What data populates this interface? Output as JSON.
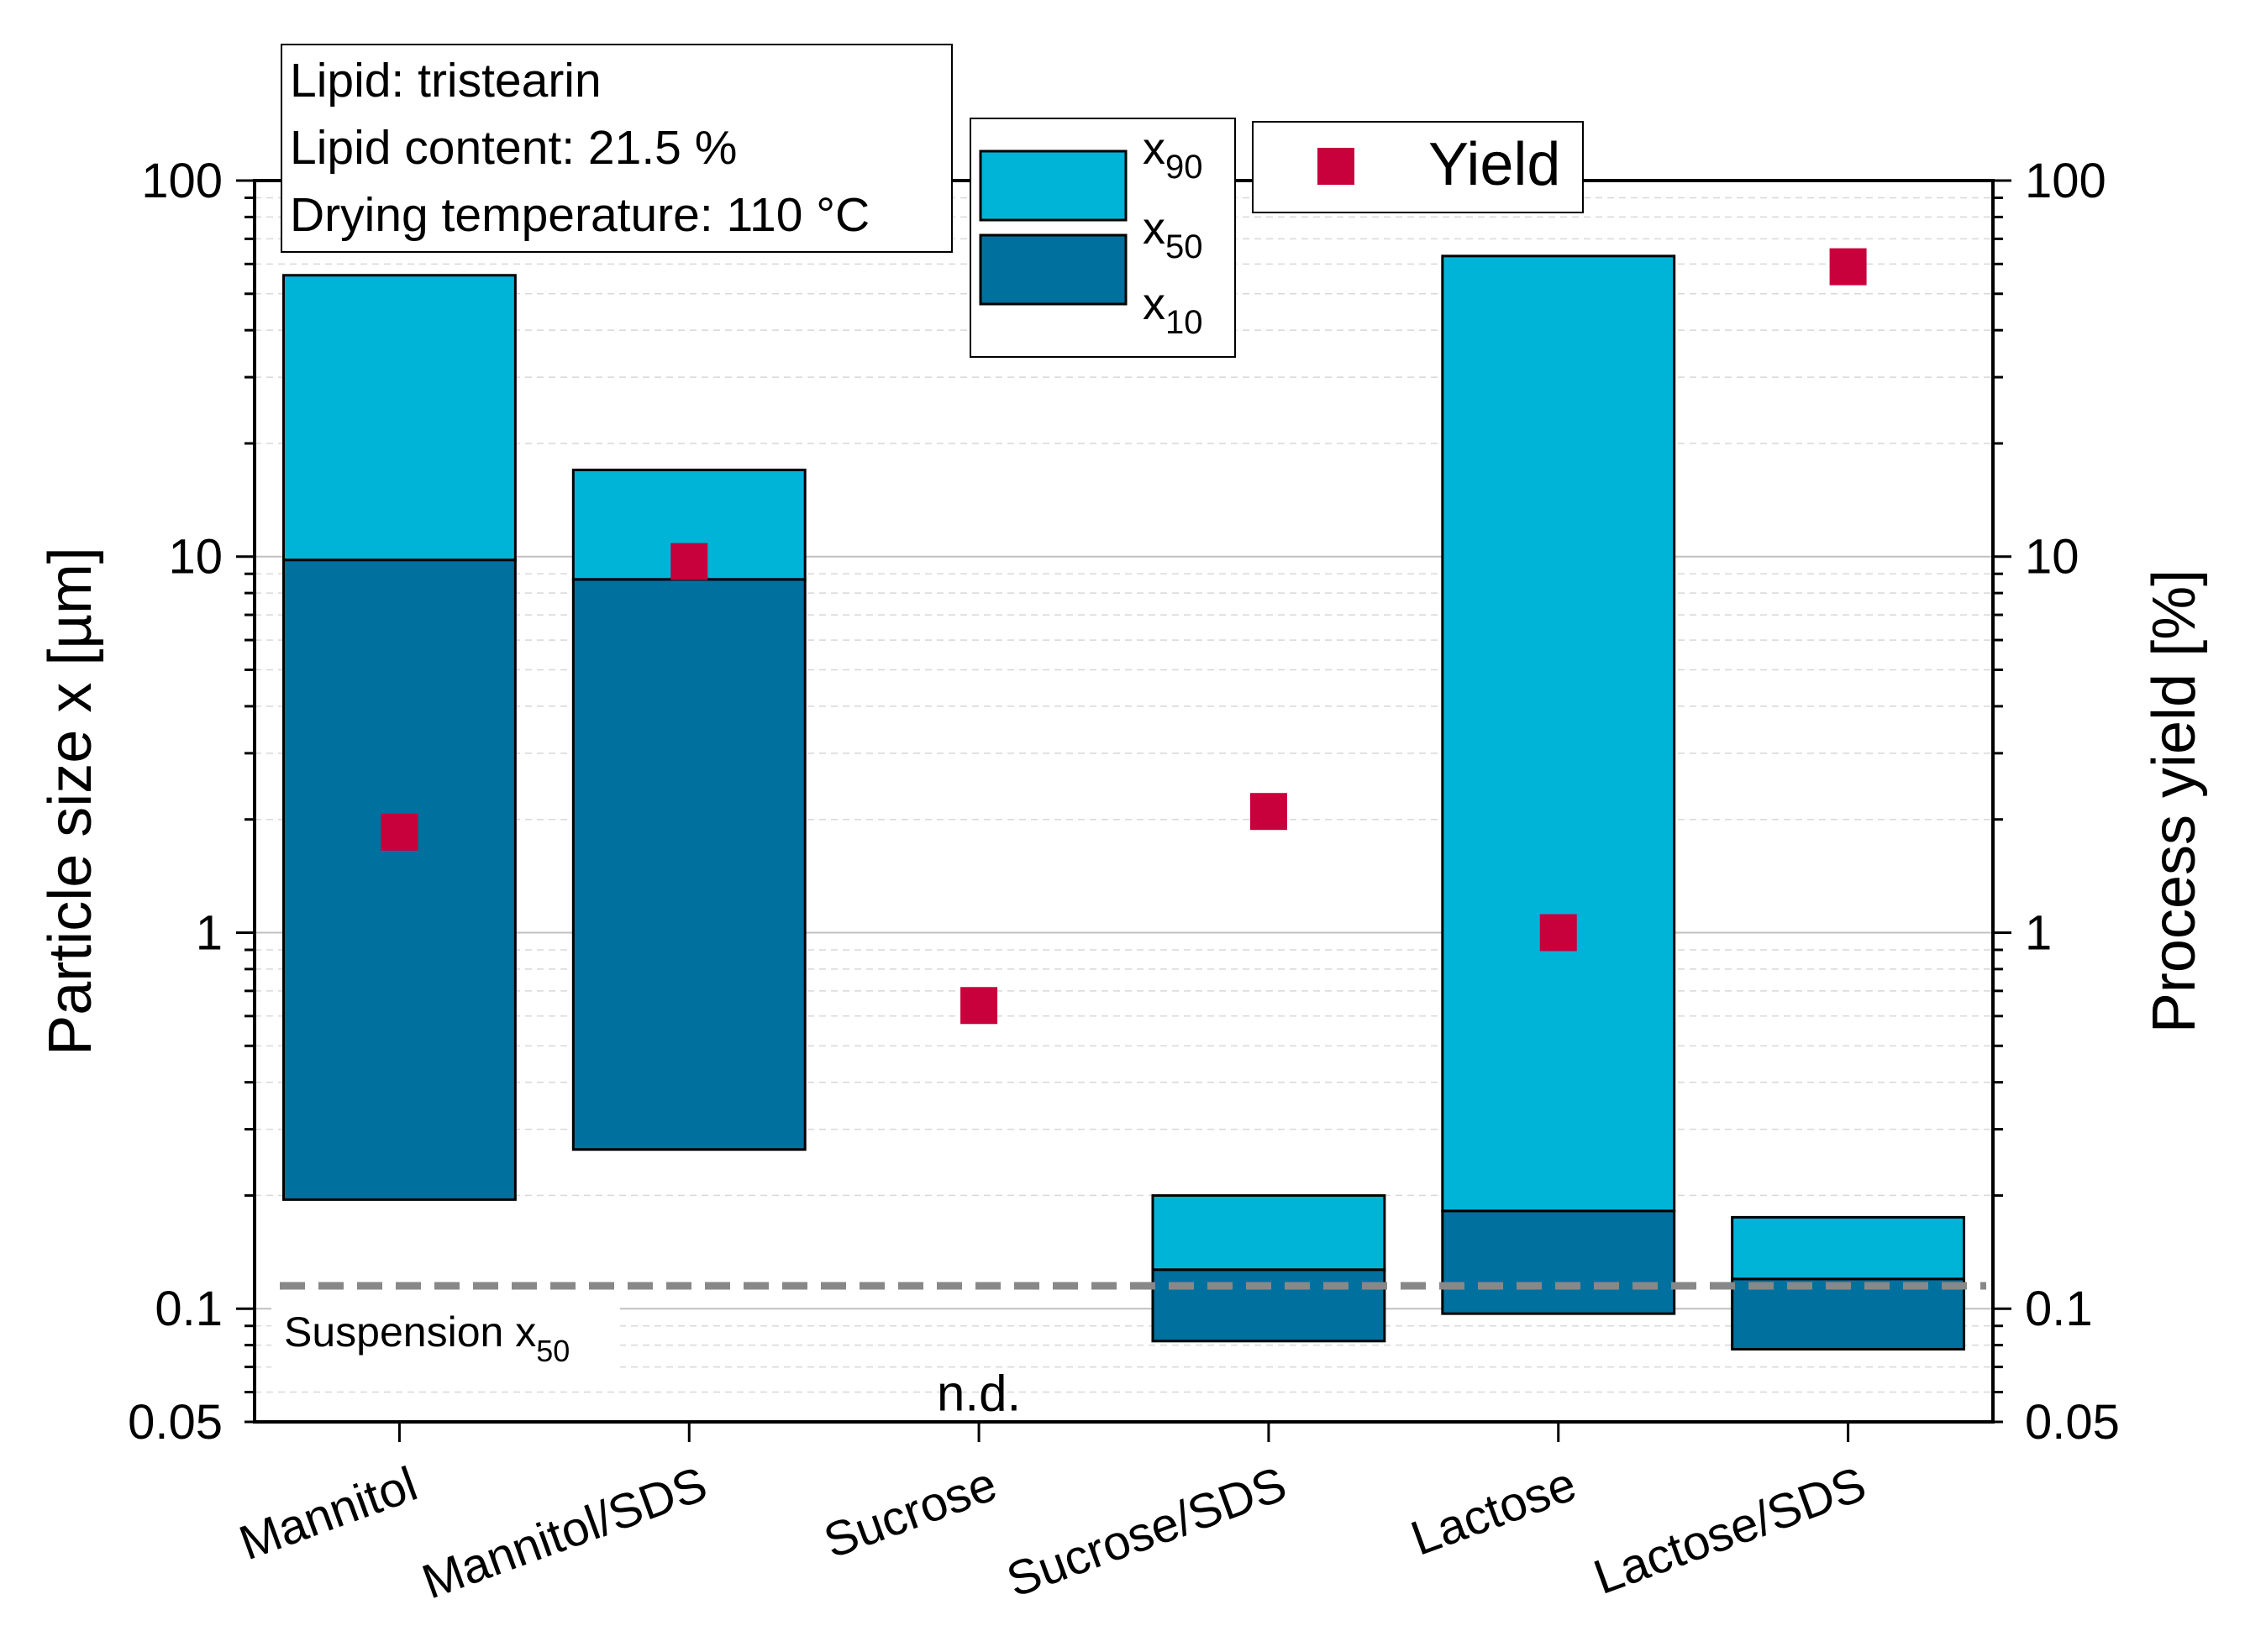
{
  "colors": {
    "x90": "#00B4D8",
    "x50": "#00709E",
    "yield": "#C8003C",
    "grid_major": "#c0c0c0",
    "grid_minor": "#d8d8d8",
    "suspension_line": "#888888"
  },
  "annotation": {
    "lines": [
      "Lipid: tristearin",
      "Lipid content: 21.5 %",
      "Drying temperature: 110 °C"
    ]
  },
  "legend": {
    "x90": "x",
    "x90_sub": "90",
    "x50": "x",
    "x50_sub": "50",
    "x10": "x",
    "x10_sub": "10",
    "yield": "Yield"
  },
  "chart_data": {
    "type": "bar",
    "categories": [
      "Mannitol",
      "Mannitol/SDS",
      "Sucrose",
      "Sucrose/SDS",
      "Lactose",
      "Lactose/SDS"
    ],
    "series": [
      {
        "name": "x10",
        "axis": "left",
        "values": [
          0.195,
          0.265,
          null,
          0.082,
          0.097,
          0.078
        ]
      },
      {
        "name": "x50",
        "axis": "left",
        "values": [
          9.8,
          8.7,
          null,
          0.127,
          0.182,
          0.12
        ]
      },
      {
        "name": "x90",
        "axis": "left",
        "values": [
          56,
          17,
          null,
          0.2,
          63,
          0.175
        ]
      },
      {
        "name": "Yield",
        "axis": "right",
        "type": "scatter",
        "values": [
          1.85,
          9.7,
          0.64,
          2.1,
          1.0,
          59
        ]
      }
    ],
    "title": "",
    "xlabel": "",
    "ylabel": "Particle size x [µm]",
    "y2label": "Process yield [%]",
    "yscale": "log",
    "ylim": [
      0.05,
      100
    ],
    "y2lim": [
      0.05,
      100
    ],
    "yticks": [
      0.05,
      0.1,
      1,
      10,
      100
    ],
    "ytick_labels": [
      "0.05",
      "0.1",
      "1",
      "10",
      "100"
    ],
    "reference_line": {
      "label": "Suspension x",
      "label_sub": "50",
      "value": 0.115
    },
    "na_category": "Sucrose",
    "na_label": "n.d."
  }
}
